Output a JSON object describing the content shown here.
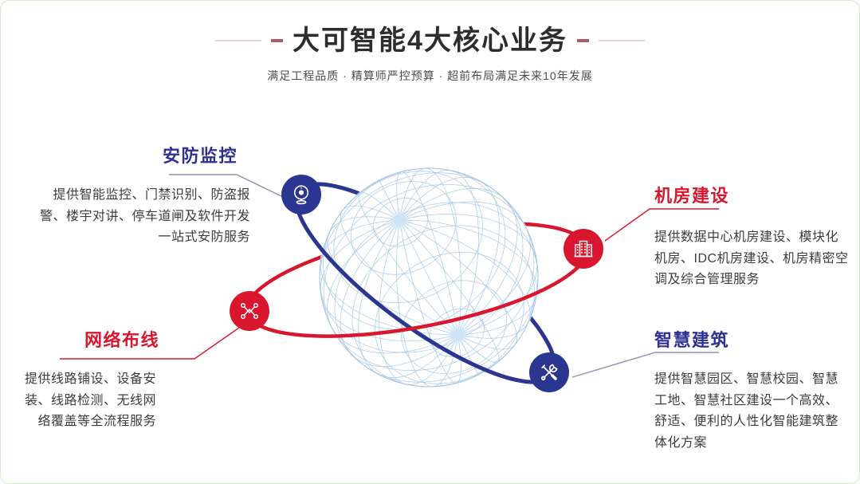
{
  "header": {
    "title": "大可智能4大核心业务",
    "subtitle": "满足工程品质 · 精算师严控预算 · 超前布局满足未来10年发展"
  },
  "sections": {
    "security": {
      "title": "安防监控",
      "body": "提供智能监控、门禁识别、防盗报\n警、楼宇对讲、停车道闸及软件开发\n一站式安防服务",
      "icon": "webcam-icon"
    },
    "server_room": {
      "title": "机房建设",
      "body": "提供数据中心机房建设、模块化\n机房、IDC机房建设、机房精密空\n调及综合管理服务",
      "icon": "building-icon"
    },
    "network": {
      "title": "网络布线",
      "body": "提供线路铺设、设备安\n装、线路检测、无线网\n络覆盖等全流程服务",
      "icon": "network-nodes-icon"
    },
    "smart_building": {
      "title": "智慧建筑",
      "body": "提供智慧园区、智慧校园、智慧\n工地、智慧社区建设一个高效、\n舒适、便利的人性化智能建筑整\n体化方案",
      "icon": "crossed-tools-icon"
    }
  },
  "colors": {
    "navy": "#2b3690",
    "red": "#d8172f",
    "section_title_navy": "#2e3192",
    "title_text": "#2d2d2d",
    "subtitle_text": "#4c4c4c",
    "body_text": "#3c3c3c",
    "globe_line": "#a6c6e6",
    "globe_pole_glow": "#cde3f6",
    "connector_blue": "#8a91b5",
    "dash_dark": "#b25a64",
    "dash_light": "#e9d3d6",
    "page_border": "#d5ebcb"
  }
}
